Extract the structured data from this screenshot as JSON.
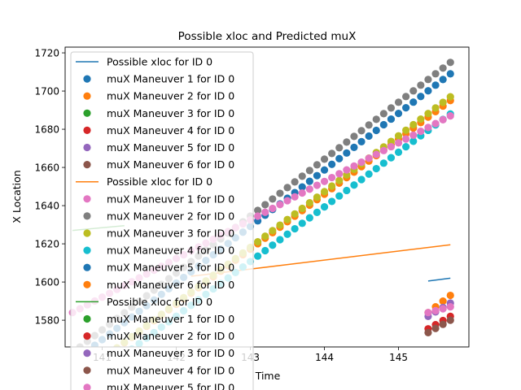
{
  "chart_data": {
    "type": "scatter",
    "title": "Possible xloc and Predicted muX",
    "xlabel": "Time",
    "ylabel": "X Location",
    "xlim": [
      140.5,
      145.95
    ],
    "ylim": [
      1566,
      1723
    ],
    "x_ticks": [
      141,
      142,
      143,
      144,
      145
    ],
    "y_ticks": [
      1580,
      1600,
      1620,
      1640,
      1660,
      1680,
      1700,
      1720
    ],
    "grid": false,
    "legend_position": "upper-left",
    "lines": [
      {
        "name": "Possible xloc for ID 0",
        "color": "#1f77b4",
        "x": [
          145.4,
          145.7
        ],
        "y": [
          1600.5,
          1602.0
        ]
      },
      {
        "name": "Possible xloc for ID 0",
        "color": "#ff7f0e",
        "x": [
          142.2,
          145.7
        ],
        "y": [
          1603.0,
          1619.5
        ]
      },
      {
        "name": "Possible xloc for ID 0",
        "color": "#2ca02c",
        "x": [
          140.6,
          141.3
        ],
        "y": [
          1627.0,
          1629.5
        ]
      }
    ],
    "scatter_segments": [
      {
        "color": "#1f77b4",
        "t0": 140.6,
        "t1": 145.7,
        "n": 52,
        "y0": 1558.0,
        "y1": 1709.0
      },
      {
        "color": "#7f7f7f",
        "t0": 140.6,
        "t1": 145.7,
        "n": 52,
        "y0": 1563.0,
        "y1": 1715.0
      },
      {
        "color": "#ff7f0e",
        "t0": 140.6,
        "t1": 145.7,
        "n": 52,
        "y0": 1548.0,
        "y1": 1695.0
      },
      {
        "color": "#bcbd22",
        "t0": 140.6,
        "t1": 145.7,
        "n": 52,
        "y0": 1548.0,
        "y1": 1697.0
      },
      {
        "color": "#17becf",
        "t0": 140.6,
        "t1": 145.7,
        "n": 52,
        "y0": 1542.0,
        "y1": 1688.0
      },
      {
        "color": "#e377c2",
        "t0": 140.6,
        "t1": 145.7,
        "n": 52,
        "y0": 1584.0,
        "y1": 1687.0
      },
      {
        "color": "#ff7f0e",
        "t0": 145.4,
        "t1": 145.7,
        "n": 4,
        "y0": 1584.0,
        "y1": 1593.0
      },
      {
        "color": "#9467bd",
        "t0": 145.4,
        "t1": 145.7,
        "n": 4,
        "y0": 1582.0,
        "y1": 1589.0
      },
      {
        "color": "#e377c2",
        "t0": 145.4,
        "t1": 145.7,
        "n": 4,
        "y0": 1584.0,
        "y1": 1587.0
      },
      {
        "color": "#d62728",
        "t0": 145.4,
        "t1": 145.7,
        "n": 4,
        "y0": 1575.5,
        "y1": 1582.0
      },
      {
        "color": "#8c564b",
        "t0": 145.4,
        "t1": 145.7,
        "n": 4,
        "y0": 1573.5,
        "y1": 1580.0
      }
    ],
    "legend": [
      {
        "kind": "line",
        "color": "#1f77b4",
        "label": "Possible xloc for ID 0"
      },
      {
        "kind": "marker",
        "color": "#1f77b4",
        "label": "muX Maneuver 1 for ID 0"
      },
      {
        "kind": "marker",
        "color": "#ff7f0e",
        "label": "muX Maneuver 2 for ID 0"
      },
      {
        "kind": "marker",
        "color": "#2ca02c",
        "label": "muX Maneuver 3 for ID 0"
      },
      {
        "kind": "marker",
        "color": "#d62728",
        "label": "muX Maneuver 4 for ID 0"
      },
      {
        "kind": "marker",
        "color": "#9467bd",
        "label": "muX Maneuver 5 for ID 0"
      },
      {
        "kind": "marker",
        "color": "#8c564b",
        "label": "muX Maneuver 6 for ID 0"
      },
      {
        "kind": "line",
        "color": "#ff7f0e",
        "label": "Possible xloc for ID 0"
      },
      {
        "kind": "marker",
        "color": "#e377c2",
        "label": "muX Maneuver 1 for ID 0"
      },
      {
        "kind": "marker",
        "color": "#7f7f7f",
        "label": "muX Maneuver 2 for ID 0"
      },
      {
        "kind": "marker",
        "color": "#bcbd22",
        "label": "muX Maneuver 3 for ID 0"
      },
      {
        "kind": "marker",
        "color": "#17becf",
        "label": "muX Maneuver 4 for ID 0"
      },
      {
        "kind": "marker",
        "color": "#1f77b4",
        "label": "muX Maneuver 5 for ID 0"
      },
      {
        "kind": "marker",
        "color": "#ff7f0e",
        "label": "muX Maneuver 6 for ID 0"
      },
      {
        "kind": "line",
        "color": "#2ca02c",
        "label": "Possible xloc for ID 0"
      },
      {
        "kind": "marker",
        "color": "#2ca02c",
        "label": "muX Maneuver 1 for ID 0"
      },
      {
        "kind": "marker",
        "color": "#d62728",
        "label": "muX Maneuver 2 for ID 0"
      },
      {
        "kind": "marker",
        "color": "#9467bd",
        "label": "muX Maneuver 3 for ID 0"
      },
      {
        "kind": "marker",
        "color": "#8c564b",
        "label": "muX Maneuver 4 for ID 0"
      },
      {
        "kind": "marker",
        "color": "#e377c2",
        "label": "muX Maneuver 5 for ID 0"
      }
    ]
  }
}
